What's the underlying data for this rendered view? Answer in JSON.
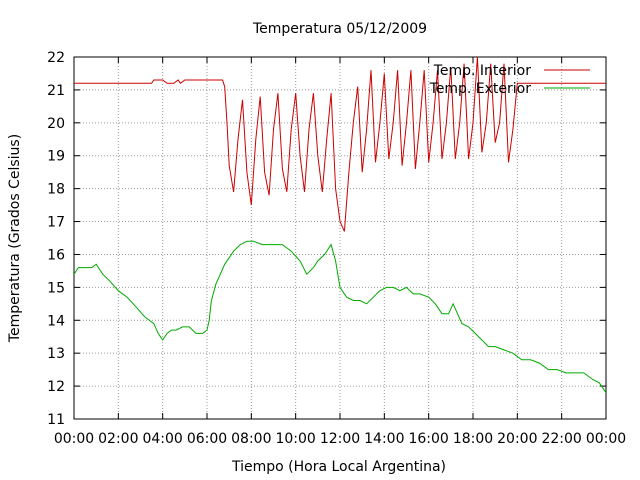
{
  "chart_data": {
    "type": "line",
    "title": "Temperatura 05/12/2009",
    "xlabel": "Tiempo (Hora Local Argentina)",
    "ylabel": "Temperatura (Grados Celsius)",
    "xlim": [
      0,
      24
    ],
    "ylim": [
      11,
      22
    ],
    "x_ticks": [
      "00:00",
      "02:00",
      "04:00",
      "06:00",
      "08:00",
      "10:00",
      "12:00",
      "14:00",
      "16:00",
      "18:00",
      "20:00",
      "22:00",
      "00:00"
    ],
    "y_ticks": [
      "11",
      "12",
      "13",
      "14",
      "15",
      "16",
      "17",
      "18",
      "19",
      "20",
      "21",
      "22"
    ],
    "grid": true,
    "legend_position": "top-right",
    "series": [
      {
        "name": "Temp. Interior",
        "color": "#cc0000",
        "x": [
          0,
          1,
          2,
          3,
          3.5,
          3.6,
          4,
          4.2,
          4.5,
          4.7,
          4.8,
          5.0,
          5.2,
          6.0,
          6.7,
          6.8,
          6.9,
          7.0,
          7.2,
          7.4,
          7.6,
          7.8,
          8.0,
          8.2,
          8.4,
          8.6,
          8.8,
          9.0,
          9.2,
          9.4,
          9.6,
          9.8,
          10.0,
          10.2,
          10.4,
          10.6,
          10.8,
          11.0,
          11.2,
          11.4,
          11.6,
          11.8,
          12.0,
          12.2,
          12.4,
          12.6,
          12.8,
          13.0,
          13.2,
          13.4,
          13.6,
          13.8,
          14.0,
          14.2,
          14.4,
          14.6,
          14.8,
          15.0,
          15.2,
          15.4,
          15.6,
          15.8,
          16.0,
          16.2,
          16.4,
          16.6,
          16.8,
          17.0,
          17.2,
          17.4,
          17.6,
          17.8,
          18.0,
          18.2,
          18.4,
          18.6,
          18.8,
          19.0,
          19.2,
          19.4,
          19.6,
          19.8,
          20.0,
          21,
          22,
          23,
          24
        ],
        "values": [
          21.2,
          21.2,
          21.2,
          21.2,
          21.2,
          21.3,
          21.3,
          21.2,
          21.2,
          21.3,
          21.2,
          21.3,
          21.3,
          21.3,
          21.3,
          21.1,
          20.0,
          18.7,
          17.9,
          19.5,
          20.7,
          18.5,
          17.5,
          19.5,
          20.8,
          18.5,
          17.8,
          19.8,
          20.9,
          18.6,
          17.9,
          19.8,
          20.9,
          19.0,
          17.9,
          19.8,
          20.9,
          19.0,
          17.9,
          19.5,
          20.9,
          18.0,
          17.0,
          16.7,
          18.5,
          20.0,
          21.1,
          18.5,
          19.8,
          21.6,
          18.8,
          20.0,
          21.5,
          18.9,
          20.0,
          21.6,
          18.7,
          20.0,
          21.6,
          18.6,
          20.0,
          21.6,
          18.8,
          20.0,
          21.6,
          18.9,
          20.0,
          21.7,
          18.9,
          20.0,
          21.8,
          18.9,
          20.0,
          22.0,
          19.1,
          20.0,
          21.8,
          19.4,
          20.0,
          21.8,
          18.8,
          19.8,
          21.2,
          21.2,
          21.2,
          21.2,
          21.2
        ]
      },
      {
        "name": "Temp. Exterior",
        "color": "#00aa00",
        "x": [
          0,
          0.2,
          0.5,
          0.8,
          1.0,
          1.3,
          1.6,
          2.0,
          2.4,
          2.8,
          3.2,
          3.6,
          3.8,
          3.9,
          4.0,
          4.2,
          4.4,
          4.6,
          4.9,
          5.2,
          5.5,
          5.8,
          6.0,
          6.1,
          6.2,
          6.4,
          6.6,
          6.8,
          7.0,
          7.2,
          7.5,
          7.8,
          8.1,
          8.5,
          9.0,
          9.4,
          9.8,
          10.2,
          10.5,
          10.8,
          11.0,
          11.3,
          11.6,
          11.8,
          12.0,
          12.3,
          12.6,
          12.9,
          13.2,
          13.5,
          13.8,
          14.1,
          14.4,
          14.7,
          15.0,
          15.3,
          15.6,
          16.0,
          16.3,
          16.6,
          16.9,
          17.1,
          17.3,
          17.5,
          17.8,
          18.1,
          18.4,
          18.7,
          19.0,
          19.4,
          19.8,
          20.2,
          20.6,
          21.0,
          21.4,
          21.8,
          22.2,
          22.6,
          23.0,
          23.4,
          23.7,
          24.0
        ],
        "values": [
          15.4,
          15.6,
          15.6,
          15.6,
          15.7,
          15.4,
          15.2,
          14.9,
          14.7,
          14.4,
          14.1,
          13.9,
          13.6,
          13.5,
          13.4,
          13.6,
          13.7,
          13.7,
          13.8,
          13.8,
          13.6,
          13.6,
          13.7,
          14.0,
          14.6,
          15.1,
          15.4,
          15.7,
          15.9,
          16.1,
          16.3,
          16.4,
          16.4,
          16.3,
          16.3,
          16.3,
          16.1,
          15.8,
          15.4,
          15.6,
          15.8,
          16.0,
          16.3,
          15.8,
          15.0,
          14.7,
          14.6,
          14.6,
          14.5,
          14.7,
          14.9,
          15.0,
          15.0,
          14.9,
          15.0,
          14.8,
          14.8,
          14.7,
          14.5,
          14.2,
          14.2,
          14.5,
          14.2,
          13.9,
          13.8,
          13.6,
          13.4,
          13.2,
          13.2,
          13.1,
          13.0,
          12.8,
          12.8,
          12.7,
          12.5,
          12.5,
          12.4,
          12.4,
          12.4,
          12.2,
          12.1,
          11.8
        ]
      }
    ]
  }
}
